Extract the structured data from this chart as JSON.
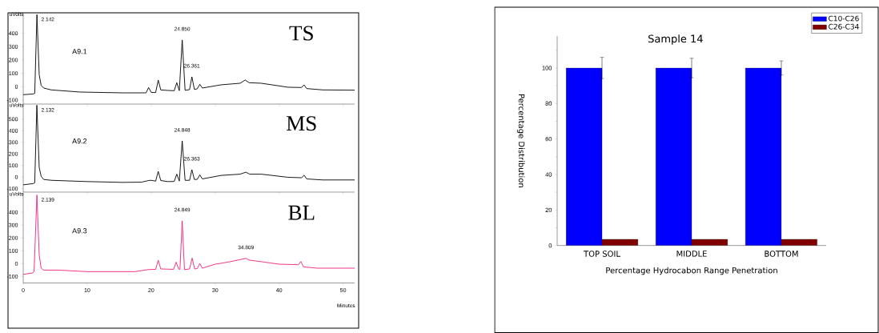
{
  "chart_data": [
    {
      "type": "line",
      "ylabel": "uVolts",
      "color": "#000000",
      "xlim": [
        0,
        51.8
      ],
      "xticks": [
        0,
        10,
        20,
        30,
        40,
        50
      ],
      "ylim": [
        -130,
        550
      ],
      "yticks": [
        -100,
        0,
        100,
        200,
        300,
        400
      ],
      "tick_labels": "y",
      "x": [
        0,
        1.6,
        1.8,
        2.142,
        2.5,
        2.8,
        3.2,
        4.4,
        8.9,
        15.5,
        19.2,
        19.6,
        20.0,
        20.7,
        21.1,
        21.5,
        22.6,
        23.6,
        24.0,
        24.4,
        24.85,
        25.3,
        26.0,
        26.361,
        26.75,
        27.2,
        27.6,
        28.0,
        30.9,
        33.9,
        34.7,
        35.3,
        37.2,
        41.4,
        43.5,
        43.9,
        44.3,
        46.8,
        51.8
      ],
      "values": [
        -60,
        -54,
        -50,
        540,
        90,
        10,
        -10,
        -24,
        -40,
        -46,
        -46,
        -6,
        -42,
        -44,
        50,
        -24,
        -28,
        -30,
        30,
        -30,
        350,
        -27,
        -22,
        74,
        -20,
        -16,
        18,
        -10,
        14,
        26,
        50,
        30,
        26,
        -4,
        -6,
        14,
        -14,
        -24,
        -26
      ],
      "annotations": [
        "A9.1",
        "TS",
        {
          "text": "2.142",
          "x": 2.142,
          "y": 540
        },
        {
          "text": "24.850",
          "x": 24.85,
          "y": 350
        },
        {
          "text": "26.361",
          "x": 26.361,
          "y": 74
        }
      ]
    },
    {
      "type": "line",
      "ylabel": "uVolts",
      "color": "#000000",
      "xlim": [
        0,
        51.8
      ],
      "xticks": [
        0,
        10,
        20,
        30,
        40,
        50
      ],
      "ylim": [
        -130,
        630
      ],
      "yticks": [
        -100,
        0,
        100,
        200,
        300,
        400,
        500
      ],
      "tick_labels": "y",
      "x": [
        0,
        1.6,
        1.8,
        2.132,
        2.5,
        2.8,
        3.2,
        4.4,
        10,
        15.5,
        18.5,
        19.6,
        20.0,
        20.7,
        21.1,
        21.5,
        22.6,
        23.6,
        24.0,
        24.4,
        24.848,
        25.3,
        26.0,
        26.363,
        26.75,
        27.2,
        27.6,
        28.0,
        30.9,
        33.9,
        34.8,
        35.4,
        37.2,
        41.4,
        43.5,
        43.9,
        44.3,
        46.8,
        51.8
      ],
      "values": [
        -67,
        -56,
        -50,
        620,
        81,
        7,
        -21,
        -28,
        -39,
        -46,
        -44,
        -30,
        -28,
        -35,
        49,
        -30,
        -39,
        -38,
        25,
        -35,
        312,
        -28,
        -28,
        63,
        -21,
        -20,
        19,
        -16,
        14,
        25,
        42,
        25,
        25,
        -2,
        -6,
        16,
        -16,
        -25,
        -25
      ],
      "annotations": [
        "A9.2",
        "MS",
        {
          "text": "2.132",
          "x": 2.132,
          "y": 620
        },
        {
          "text": "24.848",
          "x": 24.848,
          "y": 312
        },
        {
          "text": "26.363",
          "x": 26.363,
          "y": 63
        }
      ]
    },
    {
      "type": "line",
      "xlabel": "Minutes",
      "ylabel": "uVolts",
      "color": "#f0207a",
      "xlim": [
        0,
        51.8
      ],
      "ylim": [
        -150,
        550
      ],
      "xticks": [
        0,
        10,
        20,
        30,
        40,
        50
      ],
      "yticks": [
        -100,
        0,
        100,
        200,
        300,
        400
      ],
      "x": [
        0,
        1.5,
        1.7,
        2.139,
        2.5,
        2.8,
        3.2,
        5.5,
        10,
        17.5,
        19.5,
        20.7,
        21.1,
        21.5,
        23.5,
        23.9,
        24.3,
        24.5,
        24.849,
        25.2,
        26.0,
        26.4,
        26.8,
        27.2,
        27.6,
        28.0,
        30,
        32,
        34.809,
        35.4,
        37,
        40,
        43.0,
        43.4,
        43.8,
        46,
        51.8
      ],
      "values": [
        -83,
        -72,
        -60,
        534,
        68,
        -35,
        -50,
        -50,
        -62,
        -62,
        -46,
        -44,
        27,
        -41,
        -44,
        12,
        -42,
        -44,
        333,
        -46,
        -41,
        43,
        -41,
        -38,
        2,
        -35,
        -4,
        12,
        41,
        27,
        17,
        -4,
        -8,
        17,
        -25,
        -35,
        -35
      ],
      "annotations": [
        "A9.3",
        "BL",
        {
          "text": "2.139",
          "x": 2.139,
          "y": 534
        },
        {
          "text": "24.849",
          "x": 24.849,
          "y": 333
        },
        {
          "text": "34.809",
          "x": 34.809,
          "y": 41
        }
      ]
    },
    {
      "type": "bar",
      "title": "Sample 14",
      "xlabel": "Percentage Hydrocabon Range Penetration",
      "ylabel": "Percentage Distribution",
      "categories": [
        "TOP SOIL",
        "MIDDLE",
        "BOTTOM"
      ],
      "ylim": [
        0,
        118
      ],
      "yticks": [
        0,
        {
          "value": 10,
          "label": null
        },
        20,
        {
          "value": 30,
          "label": null
        },
        40,
        {
          "value": 50,
          "label": null
        },
        60,
        {
          "value": 70,
          "label": null
        },
        80,
        {
          "value": 90,
          "label": null
        },
        100,
        {
          "value": 110,
          "label": null
        }
      ],
      "legend": "top right",
      "series": [
        {
          "name": "C10-C26",
          "color": "#0000ff",
          "values": [
            100,
            100,
            100
          ],
          "errors": [
            6,
            5.5,
            4
          ]
        },
        {
          "name": "C26-C34",
          "color": "#800000",
          "values": [
            3.5,
            3.5,
            3.5
          ]
        }
      ]
    }
  ]
}
